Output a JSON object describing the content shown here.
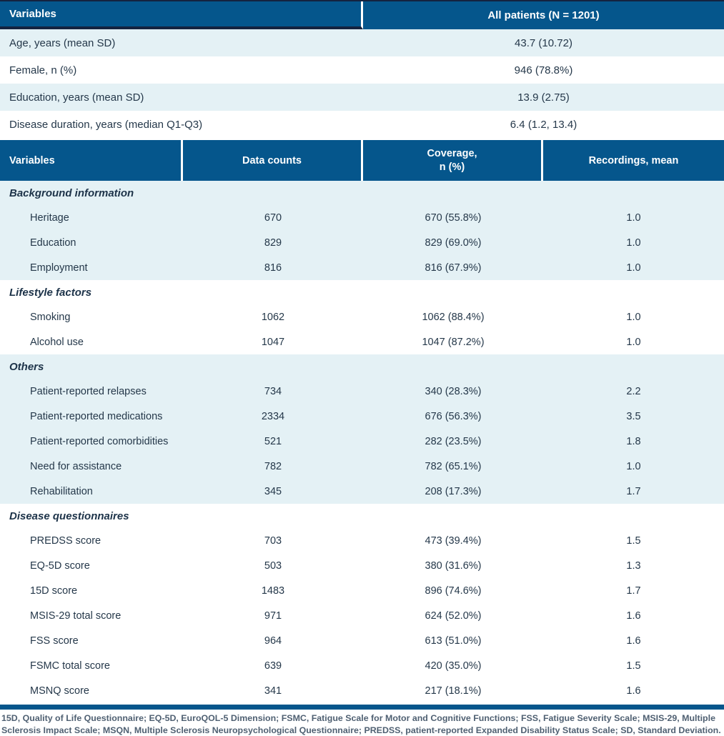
{
  "colors": {
    "header_blue": "#05568C",
    "row_light_blue": "#E4F1F5",
    "dark_navy_border": "#14233F",
    "body_text": "#25384A",
    "footnote_text": "#4F6072"
  },
  "table1": {
    "headers": [
      "Variables",
      "All patients (N = 1201)"
    ],
    "rows": [
      {
        "label": "Age, years (mean SD)",
        "value": "43.7 (10.72)"
      },
      {
        "label": "Female, n (%)",
        "value": "946 (78.8%)"
      },
      {
        "label": "Education, years (mean SD)",
        "value": "13.9 (2.75)"
      },
      {
        "label": "Disease duration, years (median Q1-Q3)",
        "value": "6.4 (1.2, 13.4)"
      }
    ]
  },
  "table2": {
    "headers": {
      "col1": "Variables",
      "col2": "Data counts",
      "col3_line1": "Coverage,",
      "col3_line2": "n (%)",
      "col4": "Recordings, mean"
    },
    "sections": [
      {
        "title": "Background information",
        "rows": [
          {
            "label": "Heritage",
            "counts": "670",
            "coverage": "670 (55.8%)",
            "mean": "1.0"
          },
          {
            "label": "Education",
            "counts": "829",
            "coverage": "829 (69.0%)",
            "mean": "1.0"
          },
          {
            "label": "Employment",
            "counts": "816",
            "coverage": "816 (67.9%)",
            "mean": "1.0"
          }
        ]
      },
      {
        "title": "Lifestyle factors",
        "rows": [
          {
            "label": "Smoking",
            "counts": "1062",
            "coverage": "1062 (88.4%)",
            "mean": "1.0"
          },
          {
            "label": "Alcohol use",
            "counts": "1047",
            "coverage": "1047 (87.2%)",
            "mean": "1.0"
          }
        ]
      },
      {
        "title": "Others",
        "rows": [
          {
            "label": "Patient-reported relapses",
            "counts": "734",
            "coverage": "340 (28.3%)",
            "mean": "2.2"
          },
          {
            "label": "Patient-reported medications",
            "counts": "2334",
            "coverage": "676 (56.3%)",
            "mean": "3.5"
          },
          {
            "label": "Patient-reported comorbidities",
            "counts": "521",
            "coverage": "282 (23.5%)",
            "mean": "1.8"
          },
          {
            "label": "Need for assistance",
            "counts": "782",
            "coverage": "782 (65.1%)",
            "mean": "1.0"
          },
          {
            "label": "Rehabilitation",
            "counts": "345",
            "coverage": "208 (17.3%)",
            "mean": "1.7"
          }
        ]
      },
      {
        "title": "Disease questionnaires",
        "rows": [
          {
            "label": "PREDSS score",
            "counts": "703",
            "coverage": "473 (39.4%)",
            "mean": "1.5"
          },
          {
            "label": "EQ-5D score",
            "counts": "503",
            "coverage": "380 (31.6%)",
            "mean": "1.3"
          },
          {
            "label": "15D score",
            "counts": "1483",
            "coverage": "896 (74.6%)",
            "mean": "1.7"
          },
          {
            "label": "MSIS-29 total score",
            "counts": "971",
            "coverage": "624 (52.0%)",
            "mean": "1.6"
          },
          {
            "label": "FSS score",
            "counts": "964",
            "coverage": "613 (51.0%)",
            "mean": "1.6"
          },
          {
            "label": "FSMC total score",
            "counts": "639",
            "coverage": "420 (35.0%)",
            "mean": "1.5"
          },
          {
            "label": "MSNQ score",
            "counts": "341",
            "coverage": "217 (18.1%)",
            "mean": "1.6"
          }
        ]
      }
    ]
  },
  "footnote": "15D, Quality of Life Questionnaire; EQ-5D, EuroQOL-5 Dimension; FSMC, Fatigue Scale for Motor and Cognitive Functions; FSS, Fatigue Severity Scale; MSIS-29, Multiple Sclerosis Impact Scale; MSQN, Multiple Sclerosis Neuropsychological Questionnaire; PREDSS, patient-reported Expanded Disability Status Scale; SD, Standard Deviation."
}
